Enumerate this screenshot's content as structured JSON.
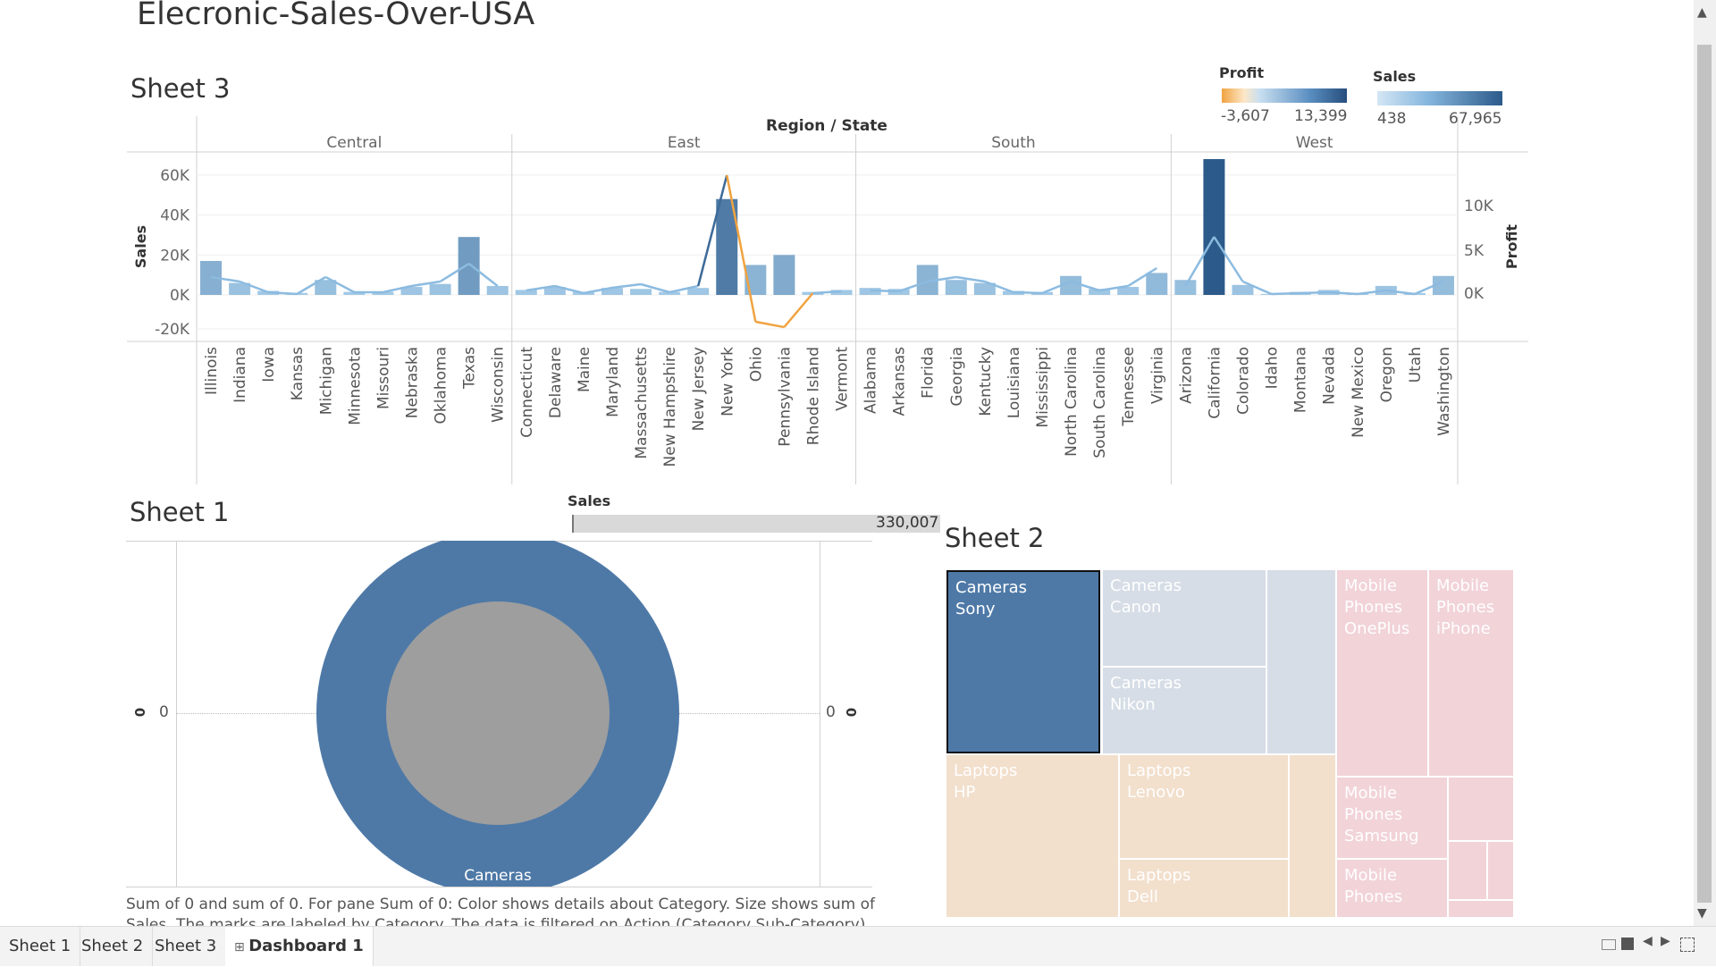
{
  "dashboard": {
    "title": "Elecronic-Sales-Over-USA"
  },
  "sheet3": {
    "title": "Sheet 3",
    "header": "Region / State",
    "y_left_label": "Sales",
    "y_right_label": "Profit",
    "legend_profit": {
      "title": "Profit",
      "min": "-3,607",
      "max": "13,399"
    },
    "legend_sales": {
      "title": "Sales",
      "min": "438",
      "max": "67,965"
    }
  },
  "chart_data": {
    "type": "bar",
    "title": "Sheet 3",
    "xlabel": "Region / State",
    "ylabel": "Sales",
    "y2label": "Profit",
    "ylim": [
      -23000,
      70000
    ],
    "y2lim": [
      -5000,
      15000
    ],
    "regions": [
      {
        "name": "Central",
        "states": [
          "Illinois",
          "Indiana",
          "Iowa",
          "Kansas",
          "Michigan",
          "Minnesota",
          "Missouri",
          "Nebraska",
          "Oklahoma",
          "Texas",
          "Wisconsin"
        ]
      },
      {
        "name": "East",
        "states": [
          "Connecticut",
          "Delaware",
          "Maine",
          "Maryland",
          "Massachusetts",
          "New Hampshire",
          "New Jersey",
          "New York",
          "Ohio",
          "Pennsylvania",
          "Rhode Island",
          "Vermont"
        ]
      },
      {
        "name": "South",
        "states": [
          "Alabama",
          "Arkansas",
          "Florida",
          "Georgia",
          "Kentucky",
          "Louisiana",
          "Mississippi",
          "North Carolina",
          "South Carolina",
          "Tennessee",
          "Virginia"
        ]
      },
      {
        "name": "West",
        "states": [
          "Arizona",
          "California",
          "Colorado",
          "Idaho",
          "Montana",
          "Nevada",
          "New Mexico",
          "Oregon",
          "Utah",
          "Washington"
        ]
      }
    ],
    "series": [
      {
        "name": "Sales",
        "kind": "bar",
        "values": [
          17000,
          6000,
          2000,
          1000,
          7500,
          1500,
          1500,
          4000,
          5500,
          29000,
          4500,
          2500,
          4000,
          1500,
          3500,
          3000,
          1500,
          3500,
          48000,
          15000,
          20000,
          1500,
          2500,
          3500,
          3000,
          15000,
          7500,
          6000,
          2000,
          1500,
          9500,
          3000,
          4000,
          11000,
          7500,
          68000,
          5000,
          500,
          1500,
          2500,
          1000,
          4500,
          1000,
          9500
        ]
      },
      {
        "name": "Profit",
        "kind": "line",
        "values": [
          2000,
          1500,
          300,
          100,
          2000,
          300,
          300,
          1000,
          1500,
          3500,
          1000,
          500,
          1000,
          200,
          800,
          1200,
          300,
          1000,
          13399,
          -3000,
          -3607,
          200,
          400,
          500,
          400,
          1500,
          2000,
          1500,
          300,
          200,
          1500,
          500,
          1000,
          3000,
          1000,
          6500,
          1500,
          100,
          200,
          300,
          100,
          500,
          100,
          1500
        ]
      }
    ],
    "legend": [
      {
        "title": "Profit",
        "min": -3607,
        "max": 13399
      },
      {
        "title": "Sales",
        "min": 438,
        "max": 67965
      }
    ]
  },
  "sheet1": {
    "title": "Sheet 1",
    "filter_title": "Sales",
    "filter_value": "330,007",
    "axis_left_zero": "0",
    "axis_right_zero": "0",
    "axis_left_label": "0",
    "axis_right_label": "0",
    "donut_label": "Cameras",
    "note": "Sum of 0 and sum of 0.  For pane Sum of 0:  Color shows details about Category.  Size shows sum of Sales.  The marks are labeled by Category.  The data is filtered on Action (Category,Sub-Category)."
  },
  "sheet2": {
    "title": "Sheet 2",
    "cells": [
      {
        "lines": [
          "Cameras",
          "Sony"
        ]
      },
      {
        "lines": [
          "Cameras",
          "Canon"
        ]
      },
      {
        "lines": [
          "Cameras",
          "Nikon"
        ]
      },
      {
        "lines": []
      },
      {
        "lines": [
          "Mobile",
          "Phones",
          "OnePlus"
        ]
      },
      {
        "lines": [
          "Mobile",
          "Phones",
          "iPhone"
        ]
      },
      {
        "lines": [
          "Mobile",
          "Phones",
          "Samsung"
        ]
      },
      {
        "lines": [
          "Mobile",
          "Phones"
        ]
      },
      {
        "lines": [
          "Laptops",
          "HP"
        ]
      },
      {
        "lines": [
          "Laptops",
          "Lenovo"
        ]
      },
      {
        "lines": [
          "Laptops",
          "Dell"
        ]
      },
      {
        "lines": []
      },
      {
        "lines": []
      },
      {
        "lines": []
      },
      {
        "lines": []
      },
      {
        "lines": []
      }
    ]
  },
  "tabs": [
    "Sheet 1",
    "Sheet 2",
    "Sheet 3",
    "Dashboard 1"
  ],
  "colors": {
    "sales_dark": "#2c5a8a",
    "sales_light": "#a4cbe8",
    "profit_neg": "#f0a340",
    "camera_blue": "#4e79a7",
    "gray": "#9e9e9e",
    "laptop_beige": "#f2dfcc",
    "mobile_pink": "#f1d3d8",
    "camera_light": "#d6dde6"
  }
}
